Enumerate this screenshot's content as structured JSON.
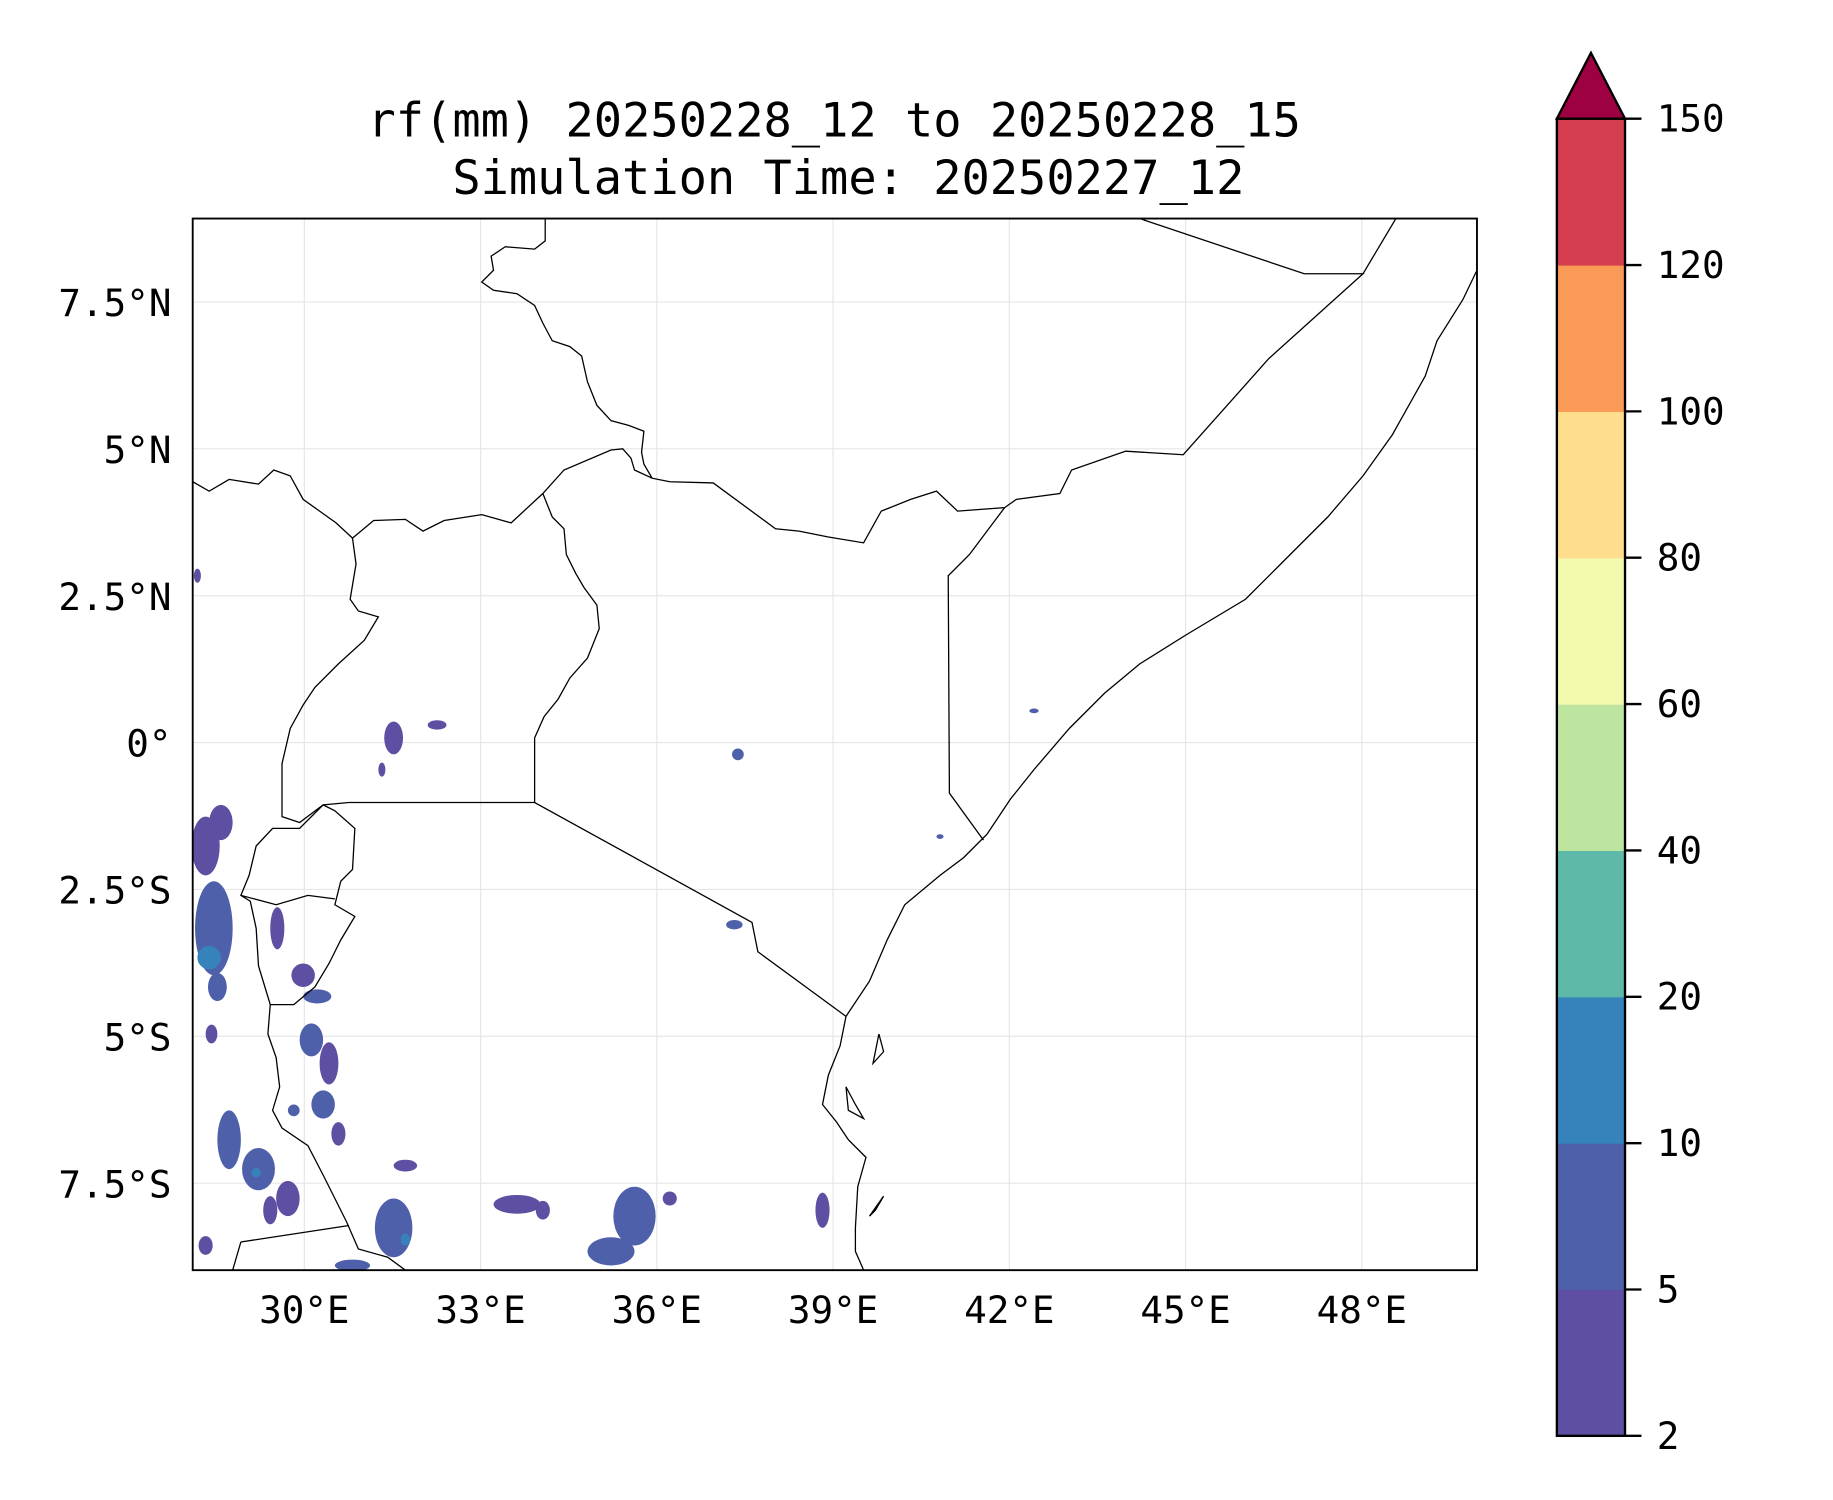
{
  "chart_data": {
    "type": "heatmap",
    "title_line1": "rf(mm) 20250228_12 to 20250228_15",
    "title_line2": "Simulation Time: 20250227_12",
    "variable": "rf(mm)",
    "x_ticks": [
      "30°E",
      "33°E",
      "36°E",
      "39°E",
      "42°E",
      "45°E",
      "48°E"
    ],
    "x_tick_values": [
      30,
      33,
      36,
      39,
      42,
      45,
      48
    ],
    "y_ticks": [
      "7.5°N",
      "5°N",
      "2.5°N",
      "0°",
      "2.5°S",
      "5°S",
      "7.5°S"
    ],
    "y_tick_values": [
      7.5,
      5,
      2.5,
      0,
      -2.5,
      -5,
      -7.5
    ],
    "lon_range": [
      28.1,
      50
    ],
    "lat_range": [
      -9,
      8.9
    ],
    "grid": true,
    "colorbar": {
      "levels": [
        2,
        5,
        10,
        20,
        40,
        60,
        80,
        100,
        120,
        150
      ],
      "labels": [
        "2",
        "5",
        "10",
        "20",
        "40",
        "60",
        "80",
        "100",
        "120",
        "150"
      ],
      "colors": [
        "#5e4fa2",
        "#4f60aa",
        "#3682ba",
        "#5eb9a9",
        "#bee5a0",
        "#f3faad",
        "#fedd8d",
        "#f99b57",
        "#d53e4f"
      ],
      "extend_color": "#9e0142",
      "extend": "max",
      "placement": "right"
    },
    "rain_regions_note_values": "mostly 2-10 mm in Lake Tanganyika / western Tanzania / southern Tanzania; isolated 10-20 mm spots"
  }
}
